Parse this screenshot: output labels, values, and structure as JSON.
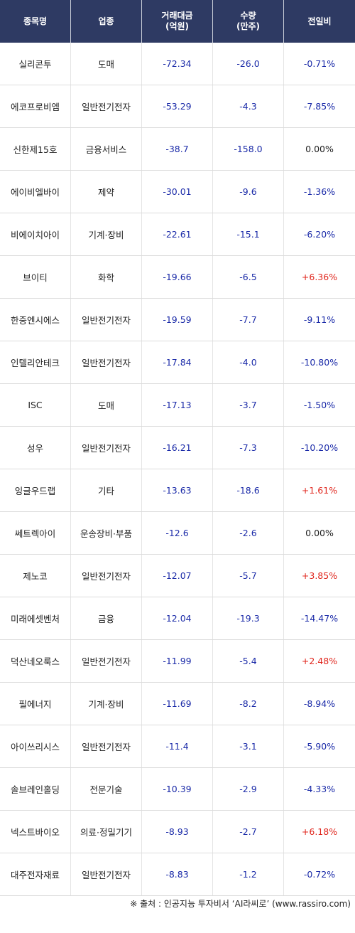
{
  "header": {
    "col1": "종목명",
    "col2": "업종",
    "col3_line1": "거래대금",
    "col3_line2": "(억원)",
    "col4_line1": "수량",
    "col4_line2": "(만주)",
    "col5": "전일비"
  },
  "rows": [
    {
      "name": "실리콘투",
      "sector": "도매",
      "amount": "-72.34",
      "volume": "-26.0",
      "change": "-0.71%",
      "dir": "neg"
    },
    {
      "name": "에코프로비엠",
      "sector": "일반전기전자",
      "amount": "-53.29",
      "volume": "-4.3",
      "change": "-7.85%",
      "dir": "neg"
    },
    {
      "name": "신한제15호",
      "sector": "금융서비스",
      "amount": "-38.7",
      "volume": "-158.0",
      "change": "0.00%",
      "dir": "zero"
    },
    {
      "name": "에이비엘바이",
      "sector": "제약",
      "amount": "-30.01",
      "volume": "-9.6",
      "change": "-1.36%",
      "dir": "neg"
    },
    {
      "name": "비에이치아이",
      "sector": "기계·장비",
      "amount": "-22.61",
      "volume": "-15.1",
      "change": "-6.20%",
      "dir": "neg"
    },
    {
      "name": "브이티",
      "sector": "화학",
      "amount": "-19.66",
      "volume": "-6.5",
      "change": "+6.36%",
      "dir": "pos"
    },
    {
      "name": "한중엔시에스",
      "sector": "일반전기전자",
      "amount": "-19.59",
      "volume": "-7.7",
      "change": "-9.11%",
      "dir": "neg"
    },
    {
      "name": "인텔리안테크",
      "sector": "일반전기전자",
      "amount": "-17.84",
      "volume": "-4.0",
      "change": "-10.80%",
      "dir": "neg"
    },
    {
      "name": "ISC",
      "sector": "도매",
      "amount": "-17.13",
      "volume": "-3.7",
      "change": "-1.50%",
      "dir": "neg"
    },
    {
      "name": "성우",
      "sector": "일반전기전자",
      "amount": "-16.21",
      "volume": "-7.3",
      "change": "-10.20%",
      "dir": "neg"
    },
    {
      "name": "잉글우드랩",
      "sector": "기타",
      "amount": "-13.63",
      "volume": "-18.6",
      "change": "+1.61%",
      "dir": "pos"
    },
    {
      "name": "쎄트렉아이",
      "sector": "운송장비·부품",
      "amount": "-12.6",
      "volume": "-2.6",
      "change": "0.00%",
      "dir": "zero"
    },
    {
      "name": "제노코",
      "sector": "일반전기전자",
      "amount": "-12.07",
      "volume": "-5.7",
      "change": "+3.85%",
      "dir": "pos"
    },
    {
      "name": "미래에셋벤처",
      "sector": "금융",
      "amount": "-12.04",
      "volume": "-19.3",
      "change": "-14.47%",
      "dir": "neg"
    },
    {
      "name": "덕산네오룩스",
      "sector": "일반전기전자",
      "amount": "-11.99",
      "volume": "-5.4",
      "change": "+2.48%",
      "dir": "pos"
    },
    {
      "name": "필에너지",
      "sector": "기계·장비",
      "amount": "-11.69",
      "volume": "-8.2",
      "change": "-8.94%",
      "dir": "neg"
    },
    {
      "name": "아이쓰리시스",
      "sector": "일반전기전자",
      "amount": "-11.4",
      "volume": "-3.1",
      "change": "-5.90%",
      "dir": "neg"
    },
    {
      "name": "솔브레인홀딩",
      "sector": "전문기술",
      "amount": "-10.39",
      "volume": "-2.9",
      "change": "-4.33%",
      "dir": "neg"
    },
    {
      "name": "넥스트바이오",
      "sector": "의료·정밀기기",
      "amount": "-8.93",
      "volume": "-2.7",
      "change": "+6.18%",
      "dir": "pos"
    },
    {
      "name": "대주전자재료",
      "sector": "일반전기전자",
      "amount": "-8.83",
      "volume": "-1.2",
      "change": "-0.72%",
      "dir": "neg"
    }
  ],
  "source": "※ 출처 : 인공지능 투자비서 ‘AI라씨로’ (www.rassiro.com)",
  "colors": {
    "header_bg": "#2e3a63",
    "positive": "#e0261d",
    "negative": "#1a2aa8"
  }
}
